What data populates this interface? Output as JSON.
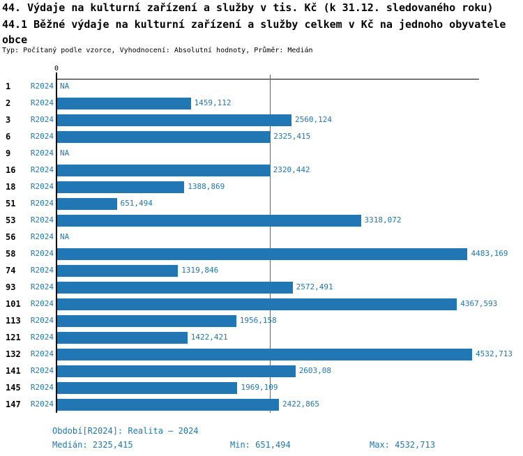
{
  "header": {
    "title": "44. Výdaje na kulturní zařízení a služby v tis. Kč (k 31.12. sledovaného roku)",
    "subtitle": "44.1 Běžné výdaje na kulturní zařízení a služby celkem v Kč na jednoho obyvatele obce",
    "meta": "Typ: Počítaný podle vzorce, Vyhodnocení: Absolutní hodnoty, Průměr: Medián"
  },
  "chart_data": {
    "type": "bar",
    "orientation": "horizontal",
    "title": "44.1 Běžné výdaje na kulturní zařízení a služby celkem v Kč na jednoho obyvatele obce",
    "period_label": "R2024",
    "bar_color": "#2077b4",
    "median_line_color": "#2077b4",
    "x_axis": {
      "zero_label": "0",
      "min": 0,
      "max_estimate": 4609,
      "grid": false
    },
    "median_value": 2325.415,
    "categories": [
      "1",
      "2",
      "3",
      "6",
      "9",
      "16",
      "18",
      "51",
      "53",
      "56",
      "58",
      "74",
      "93",
      "101",
      "113",
      "121",
      "132",
      "141",
      "145",
      "147"
    ],
    "rows": [
      {
        "id": "1",
        "period": "R2024",
        "value": null,
        "label": "NA"
      },
      {
        "id": "2",
        "period": "R2024",
        "value": 1459.112,
        "label": "1459,112"
      },
      {
        "id": "3",
        "period": "R2024",
        "value": 2560.124,
        "label": "2560,124"
      },
      {
        "id": "6",
        "period": "R2024",
        "value": 2325.415,
        "label": "2325,415"
      },
      {
        "id": "9",
        "period": "R2024",
        "value": null,
        "label": "NA"
      },
      {
        "id": "16",
        "period": "R2024",
        "value": 2320.442,
        "label": "2320,442"
      },
      {
        "id": "18",
        "period": "R2024",
        "value": 1388.869,
        "label": "1388,869"
      },
      {
        "id": "51",
        "period": "R2024",
        "value": 651.494,
        "label": "651,494"
      },
      {
        "id": "53",
        "period": "R2024",
        "value": 3318.072,
        "label": "3318,072"
      },
      {
        "id": "56",
        "period": "R2024",
        "value": null,
        "label": "NA"
      },
      {
        "id": "58",
        "period": "R2024",
        "value": 4483.169,
        "label": "4483,169"
      },
      {
        "id": "74",
        "period": "R2024",
        "value": 1319.846,
        "label": "1319,846"
      },
      {
        "id": "93",
        "period": "R2024",
        "value": 2572.491,
        "label": "2572,491"
      },
      {
        "id": "101",
        "period": "R2024",
        "value": 4367.593,
        "label": "4367,593"
      },
      {
        "id": "113",
        "period": "R2024",
        "value": 1956.158,
        "label": "1956,158"
      },
      {
        "id": "121",
        "period": "R2024",
        "value": 1422.421,
        "label": "1422,421"
      },
      {
        "id": "132",
        "period": "R2024",
        "value": 4532.713,
        "label": "4532,713"
      },
      {
        "id": "141",
        "period": "R2024",
        "value": 2603.08,
        "label": "2603,08"
      },
      {
        "id": "145",
        "period": "R2024",
        "value": 1969.109,
        "label": "1969,109"
      },
      {
        "id": "147",
        "period": "R2024",
        "value": 2422.865,
        "label": "2422,865"
      }
    ]
  },
  "footer": {
    "period_line": "Období[R2024]: Realita – 2024",
    "median": "Medián: 2325,415",
    "min": "Min: 651,494",
    "max": "Max: 4532,713"
  }
}
